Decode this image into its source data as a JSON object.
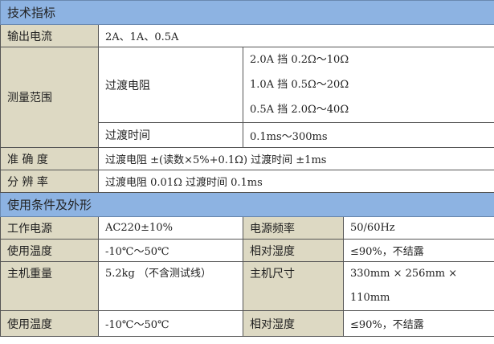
{
  "section_tech": "技术指标",
  "output_current": {
    "label": "输出电流",
    "value": "2A、1A、0.5A"
  },
  "measure_range": {
    "label": "测量范围",
    "resistance_label": "过渡电阻",
    "resistance_ranges": [
      "2.0A 挡  0.2Ω～10Ω",
      "1.0A 挡  0.5Ω～20Ω",
      "0.5A 挡  2.0Ω～40Ω"
    ],
    "time_label": "过渡时间",
    "time_range": "0.1ms～300ms"
  },
  "accuracy": {
    "label": "准 确 度",
    "value": "过渡电阻 ±(读数×5%+0.1Ω)  过渡时间 ±1ms"
  },
  "resolution": {
    "label": "分 辨 率",
    "value": "过渡电阻 0.01Ω   过渡时间 0.1ms"
  },
  "section_conditions": "使用条件及外形",
  "conditions": [
    {
      "label1": "工作电源",
      "value1": "AC220±10%",
      "label2": "电源频率",
      "value2": "50/60Hz"
    },
    {
      "label1": "使用温度",
      "value1": "-10℃～50℃",
      "label2": "相对湿度",
      "value2": "≤90%，不结露"
    },
    {
      "label1": "主机重量",
      "value1": "5.2kg （不含测试线）",
      "label2": "主机尺寸",
      "value2": "330mm × 256mm × 110mm"
    },
    {
      "label1": "使用温度",
      "value1": "-10℃～50℃",
      "label2": "相对湿度",
      "value2": "≤90%，不结露"
    }
  ]
}
